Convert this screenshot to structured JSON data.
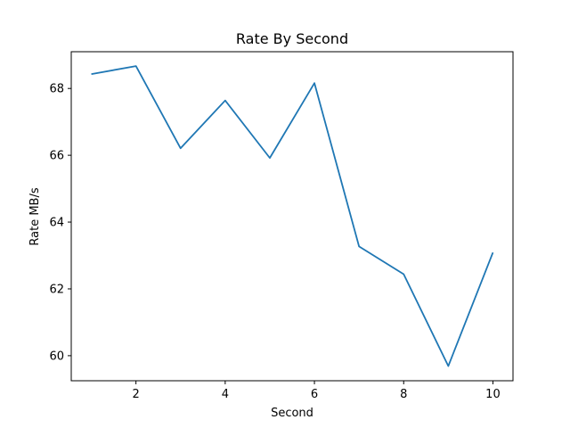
{
  "chart_data": {
    "type": "line",
    "title": "Rate By Second",
    "xlabel": "Second",
    "ylabel": "Rate MB/s",
    "xlim": [
      0.55,
      10.45
    ],
    "ylim": [
      59.25,
      69.1
    ],
    "xticks": [
      2,
      4,
      6,
      8,
      10
    ],
    "yticks": [
      60,
      62,
      64,
      66,
      68
    ],
    "grid": false,
    "series": [
      {
        "color": "#1f77b4",
        "x": [
          1,
          2,
          3,
          4,
          5,
          6,
          7,
          8,
          9,
          10
        ],
        "y": [
          68.43,
          68.67,
          66.21,
          67.64,
          65.92,
          68.16,
          63.27,
          62.44,
          59.69,
          63.09
        ]
      }
    ]
  }
}
